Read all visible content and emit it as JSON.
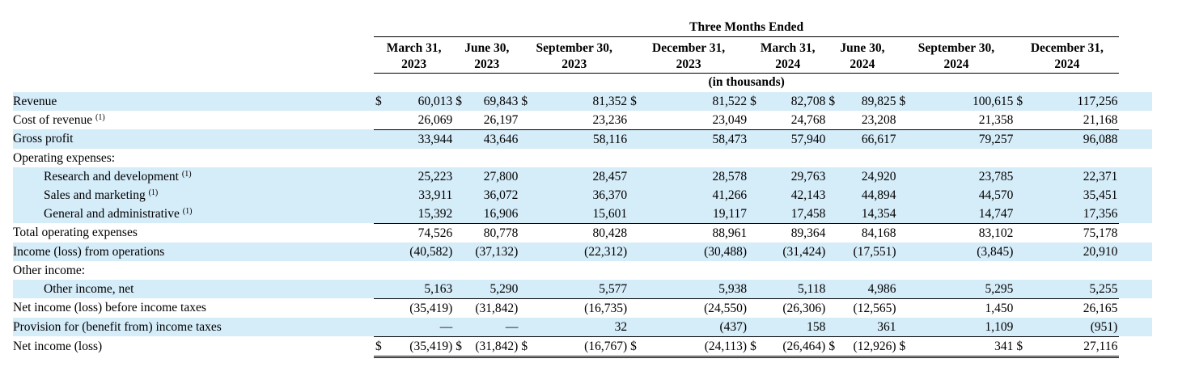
{
  "header": {
    "group_title": "Three Months Ended",
    "units": "(in thousands)",
    "columns": [
      {
        "line1": "March 31,",
        "line2": "2023"
      },
      {
        "line1": "June 30,",
        "line2": "2023"
      },
      {
        "line1": "September 30,",
        "line2": "2023"
      },
      {
        "line1": "December 31,",
        "line2": "2023"
      },
      {
        "line1": "March 31,",
        "line2": "2024"
      },
      {
        "line1": "June 30,",
        "line2": "2024"
      },
      {
        "line1": "September 30,",
        "line2": "2024"
      },
      {
        "line1": "December 31,",
        "line2": "2024"
      }
    ]
  },
  "rows": [
    {
      "label": "Revenue",
      "values": [
        "60,013",
        "69,843",
        "81,352",
        "81,522",
        "82,708",
        "89,825",
        "100,615",
        "117,256"
      ],
      "dollar": true
    },
    {
      "label": "Cost of revenue",
      "sup": "(1)",
      "values": [
        "26,069",
        "26,197",
        "23,236",
        "23,049",
        "24,768",
        "23,208",
        "21,358",
        "21,168"
      ]
    },
    {
      "label": "Gross profit",
      "values": [
        "33,944",
        "43,646",
        "58,116",
        "58,473",
        "57,940",
        "66,617",
        "79,257",
        "96,088"
      ]
    },
    {
      "label": "Operating expenses:"
    },
    {
      "label": "Research and development",
      "sup": "(1)",
      "values": [
        "25,223",
        "27,800",
        "28,457",
        "28,578",
        "29,763",
        "24,920",
        "23,785",
        "22,371"
      ]
    },
    {
      "label": "Sales and marketing",
      "sup": "(1)",
      "values": [
        "33,911",
        "36,072",
        "36,370",
        "41,266",
        "42,143",
        "44,894",
        "44,570",
        "35,451"
      ]
    },
    {
      "label": "General and administrative",
      "sup": "(1)",
      "values": [
        "15,392",
        "16,906",
        "15,601",
        "19,117",
        "17,458",
        "14,354",
        "14,747",
        "17,356"
      ]
    },
    {
      "label": "Total operating expenses",
      "values": [
        "74,526",
        "80,778",
        "80,428",
        "88,961",
        "89,364",
        "84,168",
        "83,102",
        "75,178"
      ]
    },
    {
      "label": "Income (loss) from operations",
      "values": [
        "(40,582)",
        "(37,132)",
        "(22,312)",
        "(30,488)",
        "(31,424)",
        "(17,551)",
        "(3,845)",
        "20,910"
      ]
    },
    {
      "label": "Other income:"
    },
    {
      "label": "Other income, net",
      "values": [
        "5,163",
        "5,290",
        "5,577",
        "5,938",
        "5,118",
        "4,986",
        "5,295",
        "5,255"
      ]
    },
    {
      "label": "Net income (loss) before income taxes",
      "values": [
        "(35,419)",
        "(31,842)",
        "(16,735)",
        "(24,550)",
        "(26,306)",
        "(12,565)",
        "1,450",
        "26,165"
      ]
    },
    {
      "label": "Provision for (benefit from) income taxes",
      "values": [
        "—",
        "—",
        "32",
        "(437)",
        "158",
        "361",
        "1,109",
        "(951)"
      ]
    },
    {
      "label": "Net income (loss)",
      "values": [
        "(35,419)",
        "(31,842)",
        "(16,767)",
        "(24,113)",
        "(26,464)",
        "(12,926)",
        "341",
        "27,116"
      ],
      "dollar": true
    }
  ],
  "currency_symbol": "$"
}
